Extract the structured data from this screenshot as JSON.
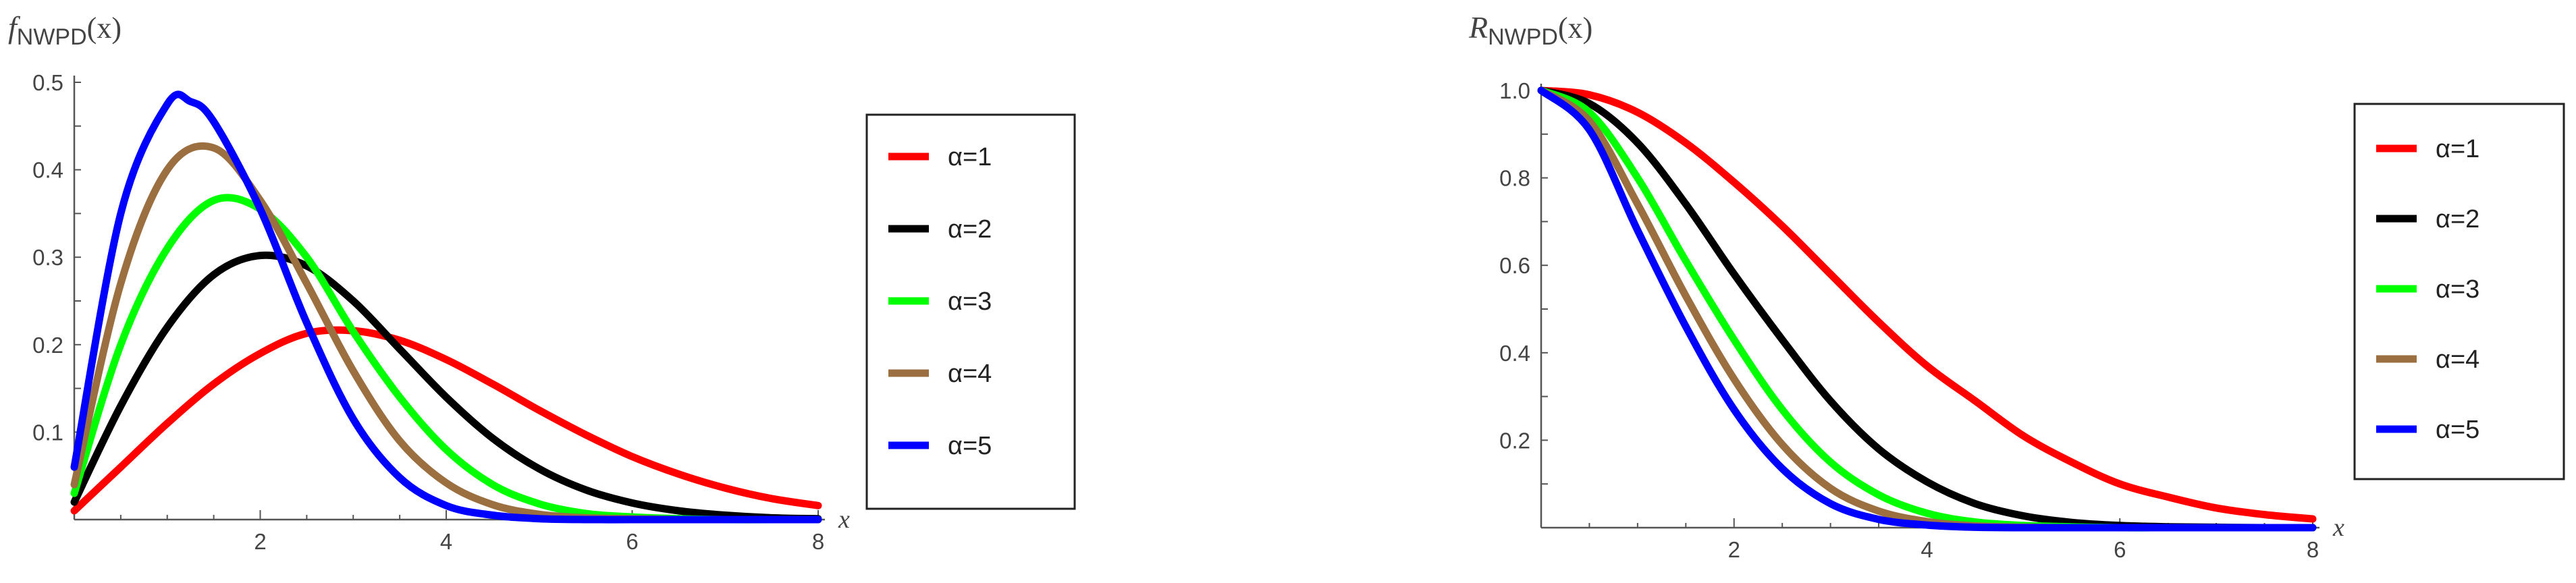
{
  "chart_data": [
    {
      "type": "line",
      "title": "",
      "ylabel": {
        "main": "f",
        "sub": "NWPD",
        "arg": "(x)"
      },
      "xlabel": "x",
      "xlim": [
        0,
        8
      ],
      "ylim": [
        0,
        0.5
      ],
      "x_ticks": [
        2,
        4,
        6,
        8
      ],
      "y_ticks": [
        0.1,
        0.2,
        0.3,
        0.4,
        0.5
      ],
      "x_tick_labels": [
        "2",
        "4",
        "6",
        "8"
      ],
      "y_tick_labels": [
        "0.1",
        "0.2",
        "0.3",
        "0.4",
        "0.5"
      ],
      "legend_position": "right",
      "grid": false,
      "series": [
        {
          "name": "α=1",
          "color": "#ff0000",
          "x": [
            0,
            0.5,
            1,
            1.5,
            2,
            2.5,
            3,
            3.5,
            4,
            4.5,
            5,
            5.5,
            6,
            6.5,
            7,
            7.5,
            8
          ],
          "y": [
            0.01,
            0.06,
            0.11,
            0.155,
            0.19,
            0.213,
            0.216,
            0.205,
            0.183,
            0.155,
            0.125,
            0.097,
            0.072,
            0.052,
            0.036,
            0.024,
            0.016
          ]
        },
        {
          "name": "α=2",
          "color": "#000000",
          "x": [
            0,
            0.5,
            1,
            1.5,
            2,
            2.5,
            3,
            3.5,
            4,
            4.5,
            5,
            5.5,
            6,
            6.5,
            7,
            7.5,
            8
          ],
          "y": [
            0.02,
            0.13,
            0.22,
            0.28,
            0.302,
            0.29,
            0.25,
            0.195,
            0.14,
            0.093,
            0.058,
            0.034,
            0.019,
            0.01,
            0.005,
            0.002,
            0.001
          ]
        },
        {
          "name": "α=3",
          "color": "#00ff00",
          "x": [
            0,
            0.5,
            1,
            1.5,
            2,
            2.5,
            3,
            3.5,
            4,
            4.5,
            5,
            5.5,
            6,
            6.5,
            7,
            7.5,
            8
          ],
          "y": [
            0.03,
            0.2,
            0.31,
            0.365,
            0.355,
            0.3,
            0.215,
            0.14,
            0.08,
            0.04,
            0.018,
            0.007,
            0.003,
            0.001,
            0,
            0,
            0
          ]
        },
        {
          "name": "α=4",
          "color": "#9b6f40",
          "x": [
            0,
            0.5,
            1,
            1.5,
            2,
            2.5,
            3,
            3.5,
            4,
            4.5,
            5,
            5.5,
            6,
            6.5,
            7,
            7.5,
            8
          ],
          "y": [
            0.04,
            0.27,
            0.4,
            0.425,
            0.365,
            0.27,
            0.17,
            0.09,
            0.042,
            0.017,
            0.006,
            0.002,
            0.001,
            0,
            0,
            0,
            0
          ]
        },
        {
          "name": "α=5",
          "color": "#0000ff",
          "x": [
            0,
            0.5,
            1,
            1.25,
            1.5,
            2,
            2.5,
            3,
            3.5,
            4,
            4.5,
            5,
            5.5,
            6,
            6.5,
            7,
            7.5,
            8
          ],
          "y": [
            0.06,
            0.35,
            0.475,
            0.478,
            0.455,
            0.355,
            0.225,
            0.115,
            0.048,
            0.016,
            0.005,
            0.001,
            0,
            0,
            0,
            0,
            0,
            0
          ]
        }
      ]
    },
    {
      "type": "line",
      "title": "",
      "ylabel": {
        "main": "R",
        "sub": "NWPD",
        "arg": "(x)"
      },
      "xlabel": "x",
      "xlim": [
        0,
        8
      ],
      "ylim": [
        0,
        1.0
      ],
      "x_ticks": [
        2,
        4,
        6,
        8
      ],
      "y_ticks": [
        0.2,
        0.4,
        0.6,
        0.8,
        1.0
      ],
      "x_tick_labels": [
        "2",
        "4",
        "6",
        "8"
      ],
      "y_tick_labels": [
        "0.2",
        "0.4",
        "0.6",
        "0.8",
        "1.0"
      ],
      "legend_position": "right",
      "grid": false,
      "series": [
        {
          "name": "α=1",
          "color": "#ff0000",
          "x": [
            0,
            0.5,
            1,
            1.5,
            2,
            2.5,
            3,
            3.5,
            4,
            4.5,
            5,
            5.5,
            6,
            6.5,
            7,
            7.5,
            8
          ],
          "y": [
            1.0,
            0.99,
            0.95,
            0.88,
            0.79,
            0.69,
            0.58,
            0.47,
            0.37,
            0.29,
            0.21,
            0.15,
            0.1,
            0.07,
            0.045,
            0.03,
            0.02
          ]
        },
        {
          "name": "α=2",
          "color": "#000000",
          "x": [
            0,
            0.5,
            1,
            1.5,
            2,
            2.5,
            3,
            3.5,
            4,
            4.5,
            5,
            5.5,
            6,
            6.5,
            7,
            7.5,
            8
          ],
          "y": [
            1.0,
            0.97,
            0.88,
            0.74,
            0.58,
            0.43,
            0.29,
            0.18,
            0.105,
            0.055,
            0.027,
            0.012,
            0.005,
            0.002,
            0.001,
            0,
            0
          ]
        },
        {
          "name": "α=3",
          "color": "#00ff00",
          "x": [
            0,
            0.5,
            1,
            1.5,
            2,
            2.5,
            3,
            3.5,
            4,
            4.5,
            5,
            5.5,
            6,
            6.5,
            7,
            7.5,
            8
          ],
          "y": [
            1.0,
            0.95,
            0.8,
            0.61,
            0.43,
            0.27,
            0.15,
            0.075,
            0.033,
            0.013,
            0.005,
            0.002,
            0,
            0,
            0,
            0,
            0
          ]
        },
        {
          "name": "α=4",
          "color": "#9b6f40",
          "x": [
            0,
            0.5,
            1,
            1.5,
            2,
            2.5,
            3,
            3.5,
            4,
            4.5,
            5,
            5.5,
            6,
            6.5,
            7,
            7.5,
            8
          ],
          "y": [
            1.0,
            0.93,
            0.74,
            0.53,
            0.34,
            0.19,
            0.09,
            0.038,
            0.014,
            0.004,
            0.001,
            0,
            0,
            0,
            0,
            0,
            0
          ]
        },
        {
          "name": "α=5",
          "color": "#0000ff",
          "x": [
            0,
            0.5,
            1,
            1.5,
            2,
            2.5,
            3,
            3.5,
            4,
            4.5,
            5,
            5.5,
            6,
            6.5,
            7,
            7.5,
            8
          ],
          "y": [
            1.0,
            0.91,
            0.68,
            0.46,
            0.27,
            0.135,
            0.055,
            0.019,
            0.006,
            0.001,
            0,
            0,
            0,
            0,
            0,
            0,
            0
          ]
        }
      ]
    }
  ]
}
